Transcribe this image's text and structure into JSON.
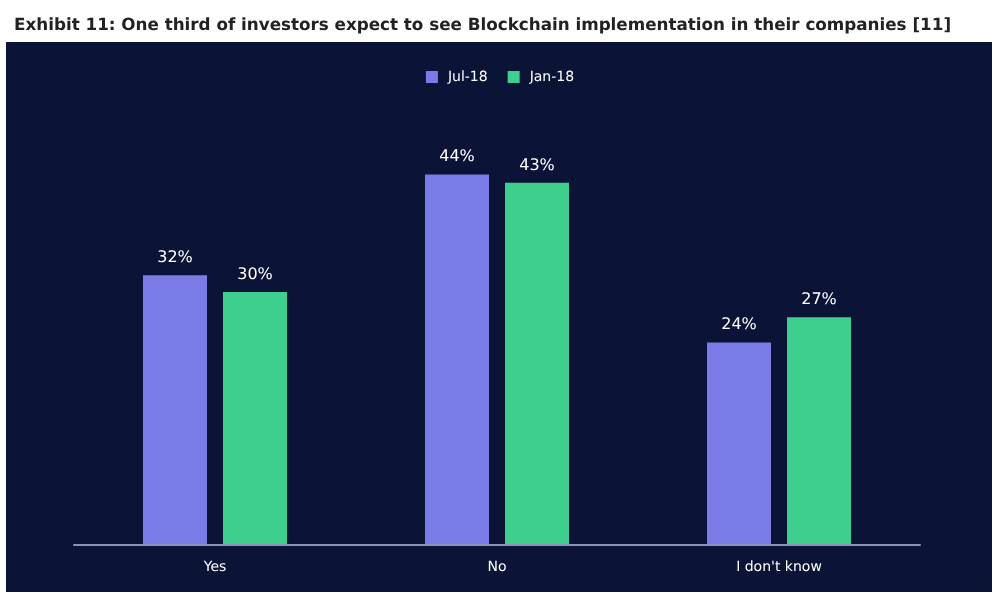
{
  "chart_data": {
    "type": "bar",
    "title": "Exhibit 11: One third of investors expect to see Blockchain implementation in their companies [11]",
    "categories": [
      "Yes",
      "No",
      "I don't know"
    ],
    "series": [
      {
        "name": "Jul-18",
        "color": "#7b7be8",
        "values": [
          32,
          44,
          24
        ],
        "value_labels": [
          "32%",
          "44%",
          "24%"
        ]
      },
      {
        "name": "Jan-18",
        "color": "#3ecf8e",
        "values": [
          30,
          43,
          27
        ],
        "value_labels": [
          "30%",
          "43%",
          "27%"
        ]
      }
    ],
    "legend": "top"
  }
}
